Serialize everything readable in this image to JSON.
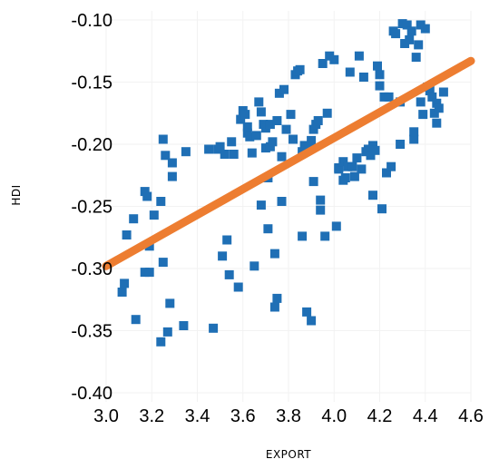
{
  "chart_data": {
    "type": "scatter",
    "title": "",
    "xlabel": "EXPORT",
    "ylabel": "HDI",
    "xlim": [
      3.0,
      4.6
    ],
    "ylim": [
      -0.4,
      -0.09
    ],
    "grid": true,
    "x_ticks": [
      "3.0",
      "3.2",
      "3.4",
      "3.6",
      "3.8",
      "4.0",
      "4.2",
      "4.4",
      "4.6"
    ],
    "y_ticks": [
      "-0.10",
      "-0.15",
      "-0.20",
      "-0.25",
      "-0.30",
      "-0.35",
      "-0.40"
    ],
    "colors": {
      "points": "#1f6fb5",
      "trend": "#ed7d31"
    },
    "trendline": {
      "x": [
        3.0,
        4.6
      ],
      "y": [
        -0.298,
        -0.133
      ]
    },
    "series": [
      {
        "points": [
          [
            3.09,
            -0.273
          ],
          [
            3.08,
            -0.312
          ],
          [
            3.07,
            -0.319
          ],
          [
            3.12,
            -0.26
          ],
          [
            3.13,
            -0.341
          ],
          [
            3.17,
            -0.238
          ],
          [
            3.18,
            -0.242
          ],
          [
            3.17,
            -0.303
          ],
          [
            3.19,
            -0.303
          ],
          [
            3.19,
            -0.282
          ],
          [
            3.21,
            -0.257
          ],
          [
            3.24,
            -0.246
          ],
          [
            3.25,
            -0.295
          ],
          [
            3.25,
            -0.196
          ],
          [
            3.26,
            -0.209
          ],
          [
            3.28,
            -0.328
          ],
          [
            3.27,
            -0.351
          ],
          [
            3.24,
            -0.359
          ],
          [
            3.29,
            -0.215
          ],
          [
            3.29,
            -0.226
          ],
          [
            3.34,
            -0.346
          ],
          [
            3.35,
            -0.206
          ],
          [
            3.45,
            -0.204
          ],
          [
            3.47,
            -0.348
          ],
          [
            3.49,
            -0.204
          ],
          [
            3.5,
            -0.202
          ],
          [
            3.51,
            -0.29
          ],
          [
            3.52,
            -0.208
          ],
          [
            3.53,
            -0.277
          ],
          [
            3.54,
            -0.305
          ],
          [
            3.55,
            -0.198
          ],
          [
            3.56,
            -0.208
          ],
          [
            3.58,
            -0.315
          ],
          [
            3.59,
            -0.18
          ],
          [
            3.6,
            -0.173
          ],
          [
            3.61,
            -0.176
          ],
          [
            3.62,
            -0.186
          ],
          [
            3.62,
            -0.191
          ],
          [
            3.63,
            -0.194
          ],
          [
            3.64,
            -0.207
          ],
          [
            3.65,
            -0.298
          ],
          [
            3.66,
            -0.193
          ],
          [
            3.67,
            -0.166
          ],
          [
            3.68,
            -0.174
          ],
          [
            3.68,
            -0.249
          ],
          [
            3.69,
            -0.184
          ],
          [
            3.7,
            -0.203
          ],
          [
            3.7,
            -0.187
          ],
          [
            3.71,
            -0.227
          ],
          [
            3.71,
            -0.268
          ],
          [
            3.72,
            -0.202
          ],
          [
            3.72,
            -0.184
          ],
          [
            3.73,
            -0.198
          ],
          [
            3.74,
            -0.288
          ],
          [
            3.75,
            -0.181
          ],
          [
            3.75,
            -0.324
          ],
          [
            3.74,
            -0.331
          ],
          [
            3.76,
            -0.159
          ],
          [
            3.78,
            -0.156
          ],
          [
            3.77,
            -0.21
          ],
          [
            3.77,
            -0.246
          ],
          [
            3.79,
            -0.188
          ],
          [
            3.81,
            -0.176
          ],
          [
            3.82,
            -0.196
          ],
          [
            3.83,
            -0.144
          ],
          [
            3.84,
            -0.141
          ],
          [
            3.85,
            -0.14
          ],
          [
            3.86,
            -0.274
          ],
          [
            3.86,
            -0.206
          ],
          [
            3.87,
            -0.201
          ],
          [
            3.88,
            -0.335
          ],
          [
            3.89,
            -0.202
          ],
          [
            3.9,
            -0.197
          ],
          [
            3.9,
            -0.342
          ],
          [
            3.91,
            -0.23
          ],
          [
            3.91,
            -0.188
          ],
          [
            3.92,
            -0.184
          ],
          [
            3.93,
            -0.181
          ],
          [
            3.94,
            -0.253
          ],
          [
            3.94,
            -0.245
          ],
          [
            3.95,
            -0.135
          ],
          [
            3.96,
            -0.274
          ],
          [
            3.97,
            -0.175
          ],
          [
            3.98,
            -0.129
          ],
          [
            4.0,
            -0.132
          ],
          [
            4.01,
            -0.266
          ],
          [
            4.02,
            -0.219
          ],
          [
            4.02,
            -0.22
          ],
          [
            4.04,
            -0.229
          ],
          [
            4.04,
            -0.214
          ],
          [
            4.05,
            -0.227
          ],
          [
            4.06,
            -0.218
          ],
          [
            4.07,
            -0.142
          ],
          [
            4.08,
            -0.218
          ],
          [
            4.09,
            -0.226
          ],
          [
            4.1,
            -0.211
          ],
          [
            4.11,
            -0.129
          ],
          [
            4.12,
            -0.22
          ],
          [
            4.13,
            -0.146
          ],
          [
            4.14,
            -0.206
          ],
          [
            4.15,
            -0.204
          ],
          [
            4.16,
            -0.209
          ],
          [
            4.17,
            -0.201
          ],
          [
            4.17,
            -0.241
          ],
          [
            4.18,
            -0.205
          ],
          [
            4.19,
            -0.137
          ],
          [
            4.2,
            -0.144
          ],
          [
            4.2,
            -0.153
          ],
          [
            4.21,
            -0.252
          ],
          [
            4.22,
            -0.162
          ],
          [
            4.23,
            -0.223
          ],
          [
            4.24,
            -0.162
          ],
          [
            4.25,
            -0.218
          ],
          [
            4.26,
            -0.109
          ],
          [
            4.27,
            -0.111
          ],
          [
            4.29,
            -0.166
          ],
          [
            4.29,
            -0.2
          ],
          [
            4.3,
            -0.103
          ],
          [
            4.31,
            -0.119
          ],
          [
            4.32,
            -0.104
          ],
          [
            4.33,
            -0.116
          ],
          [
            4.34,
            -0.109
          ],
          [
            4.35,
            -0.196
          ],
          [
            4.35,
            -0.19
          ],
          [
            4.36,
            -0.13
          ],
          [
            4.37,
            -0.12
          ],
          [
            4.38,
            -0.104
          ],
          [
            4.38,
            -0.166
          ],
          [
            4.39,
            -0.176
          ],
          [
            4.4,
            -0.107
          ],
          [
            4.41,
            -0.154
          ],
          [
            4.42,
            -0.157
          ],
          [
            4.43,
            -0.162
          ],
          [
            4.44,
            -0.175
          ],
          [
            4.45,
            -0.167
          ],
          [
            4.45,
            -0.183
          ],
          [
            4.46,
            -0.171
          ],
          [
            4.48,
            -0.158
          ]
        ]
      }
    ]
  }
}
